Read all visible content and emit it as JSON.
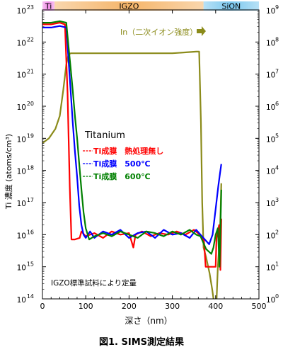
{
  "caption": "図1. SIMS測定結果",
  "note": "IGZO標準試料により定量",
  "chart_data": {
    "type": "line",
    "x": {
      "label": "深さ（nm）",
      "range": [
        0,
        500
      ],
      "ticks": [
        0,
        100,
        200,
        300,
        400,
        500
      ]
    },
    "y_left": {
      "label": "Ti 濃度 (atoms/cm³)",
      "scale": "log",
      "range": [
        100000000000000.0,
        1e+23
      ],
      "tick_exponents": [
        14,
        15,
        16,
        17,
        18,
        19,
        20,
        21,
        22,
        23
      ],
      "tick_base": "10"
    },
    "y_right": {
      "scale": "log",
      "range": [
        1,
        1000000000.0
      ],
      "tick_exponents": [
        0,
        1,
        2,
        3,
        4,
        5,
        6,
        7,
        8,
        9
      ],
      "tick_base": "10"
    },
    "layers": [
      {
        "name": "Ti",
        "x_range": [
          0,
          28
        ],
        "color": "#f08ce6"
      },
      {
        "name": "IGZO",
        "x_range": [
          28,
          372
        ],
        "color": "#f5b56a"
      },
      {
        "name": "SiON",
        "x_range": [
          372,
          500
        ],
        "color": "#7cc8ee"
      }
    ],
    "legend_title": "Titanium",
    "series": [
      {
        "name": "Ti成膜　熱処理無し",
        "color": "#ff0000",
        "axis": "left",
        "points": [
          [
            0,
            22.55
          ],
          [
            20,
            22.55
          ],
          [
            40,
            22.6
          ],
          [
            52,
            22.55
          ],
          [
            58,
            20.4
          ],
          [
            63,
            17.5
          ],
          [
            67,
            15.85
          ],
          [
            75,
            15.85
          ],
          [
            86,
            15.9
          ],
          [
            90,
            16.1
          ],
          [
            100,
            15.95
          ],
          [
            110,
            16.0
          ],
          [
            120,
            16.05
          ],
          [
            140,
            15.9
          ],
          [
            160,
            16.1
          ],
          [
            180,
            16.0
          ],
          [
            200,
            16.05
          ],
          [
            210,
            15.6
          ],
          [
            215,
            16.0
          ],
          [
            230,
            16.1
          ],
          [
            250,
            15.95
          ],
          [
            270,
            16.05
          ],
          [
            290,
            16.0
          ],
          [
            310,
            16.1
          ],
          [
            330,
            16.0
          ],
          [
            350,
            16.15
          ],
          [
            368,
            15.95
          ],
          [
            373,
            15.8
          ],
          [
            377,
            15.0
          ],
          [
            395,
            15.0
          ],
          [
            400,
            15.0
          ],
          [
            402,
            15.9
          ],
          [
            408,
            16.3
          ],
          [
            411,
            14.9
          ],
          [
            413,
            16.5
          ]
        ]
      },
      {
        "name": "Ti成膜　500℃",
        "color": "#0000ff",
        "axis": "left",
        "points": [
          [
            0,
            22.45
          ],
          [
            20,
            22.45
          ],
          [
            40,
            22.5
          ],
          [
            55,
            22.45
          ],
          [
            60,
            21.5
          ],
          [
            65,
            20.5
          ],
          [
            70,
            19.5
          ],
          [
            75,
            18.6
          ],
          [
            80,
            17.8
          ],
          [
            85,
            16.9
          ],
          [
            90,
            16.3
          ],
          [
            95,
            16.0
          ],
          [
            100,
            15.9
          ],
          [
            110,
            16.1
          ],
          [
            120,
            15.9
          ],
          [
            140,
            16.1
          ],
          [
            160,
            16.0
          ],
          [
            180,
            16.15
          ],
          [
            200,
            15.9
          ],
          [
            220,
            16.05
          ],
          [
            240,
            16.1
          ],
          [
            260,
            15.9
          ],
          [
            280,
            16.15
          ],
          [
            300,
            16.0
          ],
          [
            320,
            16.05
          ],
          [
            340,
            15.9
          ],
          [
            355,
            16.15
          ],
          [
            365,
            16.0
          ],
          [
            375,
            15.85
          ],
          [
            385,
            15.7
          ],
          [
            393,
            16.0
          ],
          [
            400,
            16.8
          ],
          [
            406,
            17.5
          ],
          [
            410,
            17.9
          ],
          [
            413,
            18.2
          ]
        ]
      },
      {
        "name": "Ti成膜　600℃",
        "color": "#008000",
        "axis": "left",
        "points": [
          [
            0,
            22.6
          ],
          [
            20,
            22.6
          ],
          [
            40,
            22.65
          ],
          [
            55,
            22.6
          ],
          [
            60,
            21.9
          ],
          [
            65,
            21.2
          ],
          [
            70,
            20.5
          ],
          [
            75,
            19.7
          ],
          [
            80,
            19.0
          ],
          [
            85,
            18.2
          ],
          [
            90,
            17.4
          ],
          [
            95,
            16.7
          ],
          [
            100,
            16.2
          ],
          [
            108,
            15.85
          ],
          [
            120,
            15.95
          ],
          [
            140,
            16.05
          ],
          [
            160,
            15.95
          ],
          [
            180,
            16.1
          ],
          [
            200,
            16.0
          ],
          [
            220,
            15.9
          ],
          [
            240,
            16.1
          ],
          [
            260,
            16.05
          ],
          [
            280,
            15.95
          ],
          [
            300,
            16.1
          ],
          [
            320,
            16.0
          ],
          [
            340,
            16.15
          ],
          [
            355,
            16.0
          ],
          [
            365,
            15.95
          ],
          [
            378,
            15.55
          ],
          [
            390,
            15.4
          ],
          [
            395,
            15.6
          ],
          [
            400,
            16.0
          ],
          [
            405,
            16.2
          ],
          [
            409,
            15.0
          ],
          [
            413,
            17.4
          ]
        ]
      },
      {
        "name": "In（二次イオン強度）",
        "color": "#8b8b1a",
        "axis": "right",
        "points": [
          [
            0,
            4.85
          ],
          [
            15,
            5.0
          ],
          [
            30,
            5.3
          ],
          [
            40,
            5.7
          ],
          [
            48,
            6.5
          ],
          [
            55,
            7.3
          ],
          [
            60,
            7.6
          ],
          [
            65,
            7.65
          ],
          [
            100,
            7.65
          ],
          [
            200,
            7.65
          ],
          [
            300,
            7.65
          ],
          [
            355,
            7.7
          ],
          [
            362,
            7.7
          ],
          [
            366,
            5.5
          ],
          [
            369,
            3.0
          ],
          [
            372,
            1.6
          ],
          [
            378,
            1.3
          ],
          [
            386,
            0.8
          ],
          [
            392,
            0.3
          ],
          [
            396,
            -0.1
          ],
          [
            400,
            -0.2
          ],
          [
            402,
            -0.1
          ],
          [
            405,
            1.0
          ],
          [
            410,
            2.0
          ],
          [
            413,
            3.6
          ]
        ]
      }
    ]
  }
}
